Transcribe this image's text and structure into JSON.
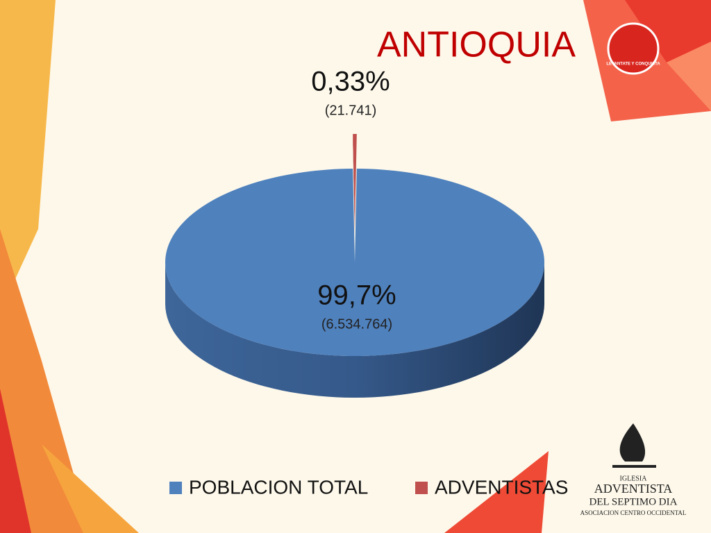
{
  "chart_data": {
    "type": "pie",
    "title": "ANTIOQUIA",
    "categories": [
      "POBLACION TOTAL",
      "ADVENTISTAS"
    ],
    "values": [
      99.7,
      0.33
    ],
    "value_labels": [
      "99,7%",
      "0,33%"
    ],
    "count_labels": [
      "(6.534.764)",
      "(21.741)"
    ],
    "colors": [
      "#4f81bd",
      "#c0504d"
    ],
    "legend": "bottom"
  },
  "logos": {
    "badge": "LEVANTATE Y CONQUISTA",
    "church": [
      "IGLESIA",
      "ADVENTISTA",
      "DEL SEPTIMO DIA",
      "ASOCIACION CENTRO OCCIDENTAL"
    ]
  }
}
